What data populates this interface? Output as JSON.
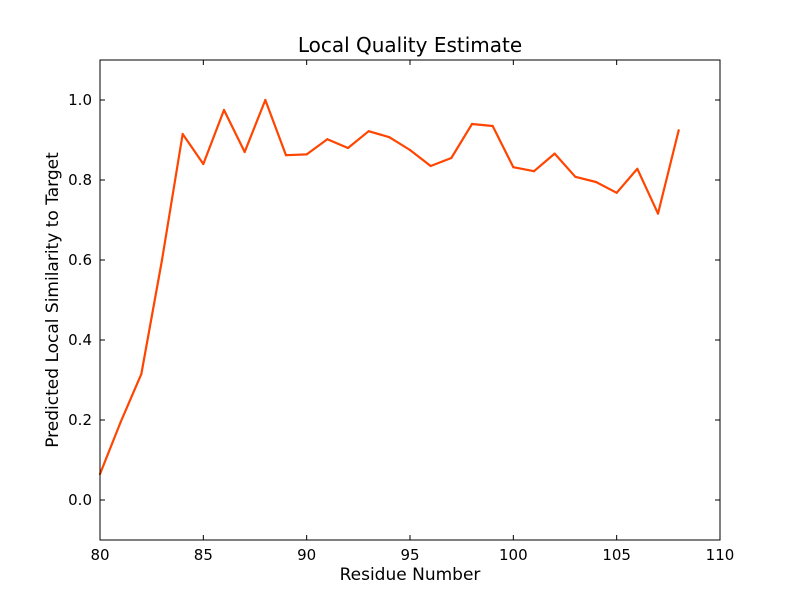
{
  "chart_data": {
    "type": "line",
    "title": "Local Quality Estimate",
    "xlabel": "Residue Number",
    "ylabel": "Predicted Local Similarity to Target",
    "xlim": [
      80,
      110
    ],
    "ylim": [
      -0.1,
      1.1
    ],
    "xticks": [
      80,
      85,
      90,
      95,
      100,
      105,
      110
    ],
    "xtick_labels": [
      "80",
      "85",
      "90",
      "95",
      "100",
      "105",
      "110"
    ],
    "yticks": [
      0.0,
      0.2,
      0.4,
      0.6,
      0.8,
      1.0
    ],
    "ytick_labels": [
      "0.0",
      "0.2",
      "0.4",
      "0.6",
      "0.8",
      "1.0"
    ],
    "grid": false,
    "legend": "none",
    "series": [
      {
        "color": "#ff4500",
        "x": [
          80,
          81,
          82,
          83,
          84,
          85,
          86,
          87,
          88,
          89,
          90,
          91,
          92,
          93,
          94,
          95,
          96,
          97,
          98,
          99,
          100,
          101,
          102,
          103,
          104,
          105,
          106,
          107,
          108
        ],
        "y": [
          0.065,
          0.195,
          0.315,
          0.6,
          0.915,
          0.84,
          0.975,
          0.87,
          1.0,
          0.862,
          0.864,
          0.902,
          0.88,
          0.922,
          0.907,
          0.875,
          0.835,
          0.855,
          0.94,
          0.935,
          0.832,
          0.822,
          0.866,
          0.808,
          0.795,
          0.768,
          0.828,
          0.716,
          0.924
        ]
      }
    ]
  }
}
